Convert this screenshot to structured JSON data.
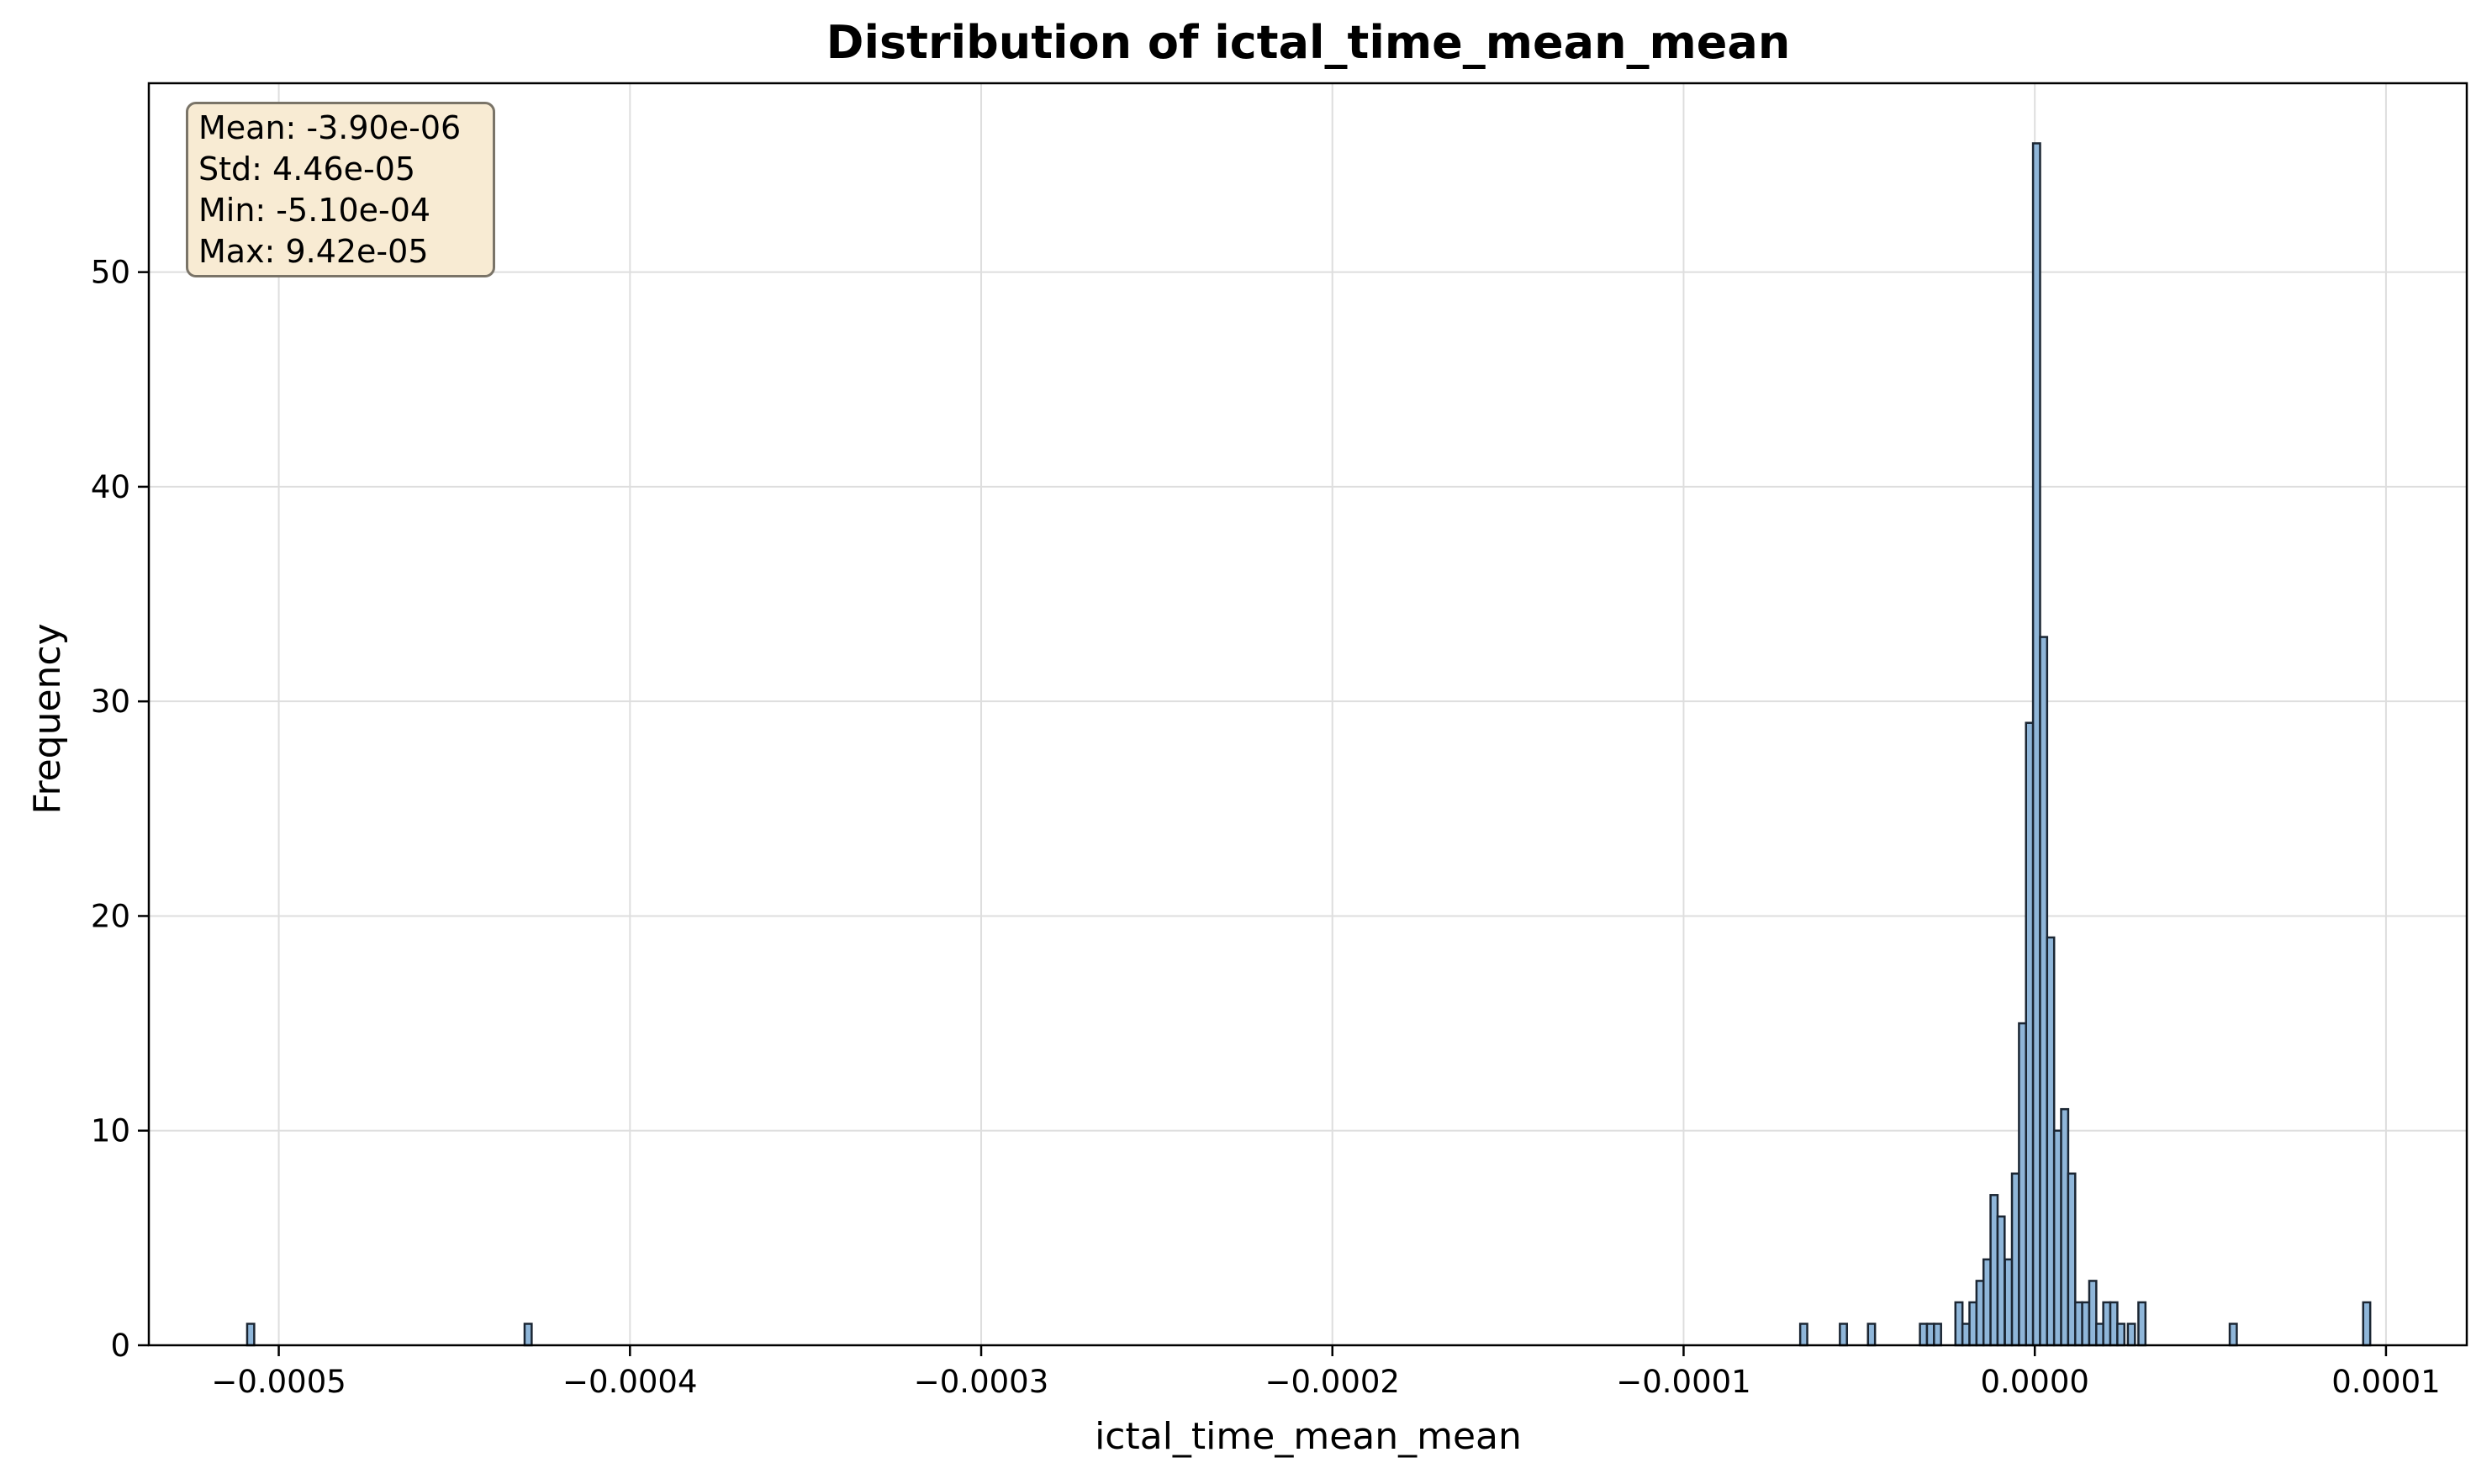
{
  "chart_data": {
    "type": "bar",
    "subtype": "histogram",
    "title": "Distribution of ictal_time_mean_mean",
    "xlabel": "ictal_time_mean_mean",
    "ylabel": "Frequency",
    "xlim": [
      -0.000537,
      0.000123
    ],
    "ylim": [
      0,
      58.8
    ],
    "x_ticks": [
      -0.0005,
      -0.0004,
      -0.0003,
      -0.0002,
      -0.0001,
      0.0,
      0.0001
    ],
    "x_tick_labels": [
      "−0.0005",
      "−0.0004",
      "−0.0003",
      "−0.0002",
      "−0.0001",
      "0.0000",
      "0.0001"
    ],
    "y_ticks": [
      0,
      10,
      20,
      30,
      40,
      50
    ],
    "y_tick_labels": [
      "0",
      "10",
      "20",
      "30",
      "40",
      "50"
    ],
    "grid": true,
    "bar_fill": "#8fb6d9",
    "bar_edge": "#1b2633",
    "bin_width": 2.01e-06,
    "bins": [
      {
        "x": -0.000509,
        "count": 1
      },
      {
        "x": -0.00043,
        "count": 1
      },
      {
        "x": -6.68e-05,
        "count": 1
      },
      {
        "x": -5.55e-05,
        "count": 1
      },
      {
        "x": -4.75e-05,
        "count": 1
      },
      {
        "x": -3.27e-05,
        "count": 1
      },
      {
        "x": -3.07e-05,
        "count": 1
      },
      {
        "x": -2.87e-05,
        "count": 1
      },
      {
        "x": -2.26e-05,
        "count": 2
      },
      {
        "x": -2.06e-05,
        "count": 1
      },
      {
        "x": -1.86e-05,
        "count": 2
      },
      {
        "x": -1.66e-05,
        "count": 3
      },
      {
        "x": -1.46e-05,
        "count": 4
      },
      {
        "x": -1.26e-05,
        "count": 7
      },
      {
        "x": -1.06e-05,
        "count": 6
      },
      {
        "x": -8.5e-06,
        "count": 4
      },
      {
        "x": -6.5e-06,
        "count": 8
      },
      {
        "x": -4.5e-06,
        "count": 15
      },
      {
        "x": -2.5e-06,
        "count": 29
      },
      {
        "x": -5e-07,
        "count": 56
      },
      {
        "x": 1.5e-06,
        "count": 33
      },
      {
        "x": 3.5e-06,
        "count": 19
      },
      {
        "x": 5.5e-06,
        "count": 10
      },
      {
        "x": 7.5e-06,
        "count": 11
      },
      {
        "x": 9.5e-06,
        "count": 8
      },
      {
        "x": 1.15e-05,
        "count": 2
      },
      {
        "x": 1.35e-05,
        "count": 2
      },
      {
        "x": 1.55e-05,
        "count": 3
      },
      {
        "x": 1.75e-05,
        "count": 1
      },
      {
        "x": 1.95e-05,
        "count": 2
      },
      {
        "x": 2.15e-05,
        "count": 2
      },
      {
        "x": 2.35e-05,
        "count": 1
      },
      {
        "x": 2.65e-05,
        "count": 1
      },
      {
        "x": 2.95e-05,
        "count": 2
      },
      {
        "x": 5.55e-05,
        "count": 1
      },
      {
        "x": 9.35e-05,
        "count": 2
      }
    ],
    "stats_box": {
      "lines": [
        "Mean: -3.90e-06",
        "Std: 4.46e-05",
        "Min: -5.10e-04",
        "Max: 9.42e-05"
      ],
      "placement": "top-left",
      "facecolor": "#f8ebd3"
    }
  }
}
